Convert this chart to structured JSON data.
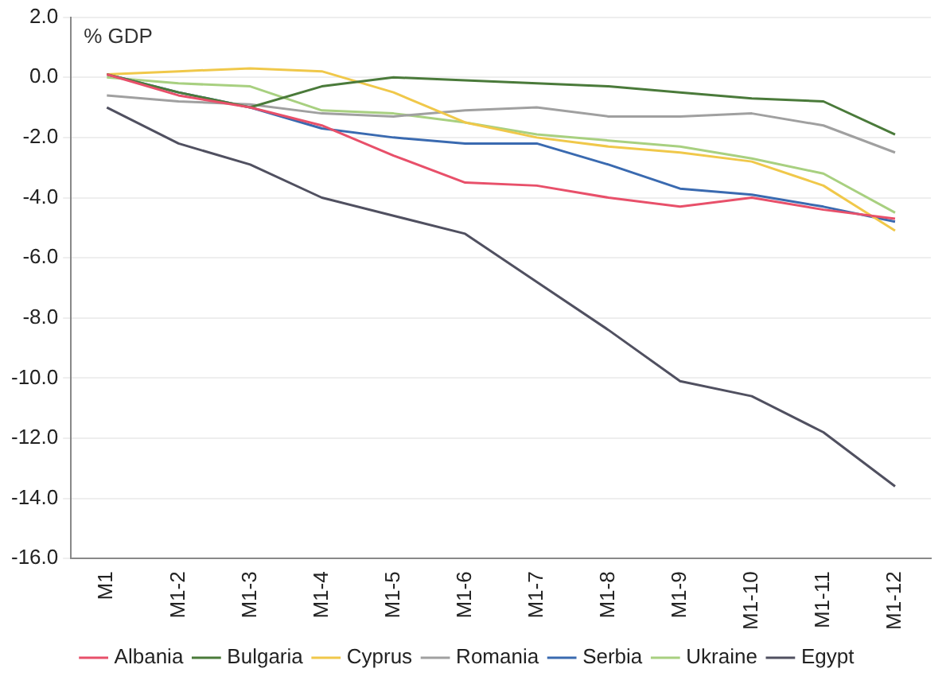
{
  "chart_data": {
    "type": "line",
    "ylabel": "% GDP",
    "categories": [
      "M1",
      "M1-2",
      "M1-3",
      "M1-4",
      "M1-5",
      "M1-6",
      "M1-7",
      "M1-8",
      "M1-9",
      "M1-10",
      "M1-11",
      "M1-12"
    ],
    "series": [
      {
        "name": "Albania",
        "color": "#e8506a",
        "values": [
          0.1,
          -0.6,
          -1.0,
          -1.6,
          -2.6,
          -3.5,
          -3.6,
          -4.0,
          -4.3,
          -4.0,
          -4.4,
          -4.7
        ]
      },
      {
        "name": "Bulgaria",
        "color": "#4a7a3a",
        "values": [
          0.1,
          -0.5,
          -1.0,
          -0.3,
          0.0,
          -0.1,
          -0.2,
          -0.3,
          -0.5,
          -0.7,
          -0.8,
          -1.9
        ]
      },
      {
        "name": "Cyprus",
        "color": "#f0c84a",
        "values": [
          0.1,
          0.2,
          0.3,
          0.2,
          -0.5,
          -1.5,
          -2.0,
          -2.3,
          -2.5,
          -2.8,
          -3.6,
          -5.1
        ]
      },
      {
        "name": "Romania",
        "color": "#a0a0a0",
        "values": [
          -0.6,
          -0.8,
          -0.9,
          -1.2,
          -1.3,
          -1.1,
          -1.0,
          -1.3,
          -1.3,
          -1.2,
          -1.6,
          -2.5
        ]
      },
      {
        "name": "Serbia",
        "color": "#3a6ab0",
        "values": [
          0.1,
          -0.5,
          -1.0,
          -1.7,
          -2.0,
          -2.2,
          -2.2,
          -2.9,
          -3.7,
          -3.9,
          -4.3,
          -4.8
        ]
      },
      {
        "name": "Ukraine",
        "color": "#a8d080",
        "values": [
          0.0,
          -0.2,
          -0.3,
          -1.1,
          -1.2,
          -1.5,
          -1.9,
          -2.1,
          -2.3,
          -2.7,
          -3.2,
          -4.5
        ]
      },
      {
        "name": "Egypt",
        "color": "#505060",
        "values": [
          -1.0,
          -2.2,
          -2.9,
          -4.0,
          -4.6,
          -5.2,
          -6.8,
          -8.4,
          -10.1,
          -10.6,
          -11.8,
          -13.6
        ]
      }
    ],
    "ylim": [
      -16,
      2
    ],
    "yticks": [
      {
        "value": -16,
        "label": "-16.0"
      },
      {
        "value": -14,
        "label": "-14.0"
      },
      {
        "value": -12,
        "label": "-12.0"
      },
      {
        "value": -10,
        "label": "-10.0"
      },
      {
        "value": -8,
        "label": "-8.0"
      },
      {
        "value": -6,
        "label": "-6.0"
      },
      {
        "value": -4,
        "label": "-4.0"
      },
      {
        "value": -2,
        "label": "-2.0"
      },
      {
        "value": 0,
        "label": "0.0"
      },
      {
        "value": 2,
        "label": "2.0"
      }
    ],
    "grid": "y",
    "legend": "bottom",
    "marker": "none",
    "line_style": "solid"
  }
}
